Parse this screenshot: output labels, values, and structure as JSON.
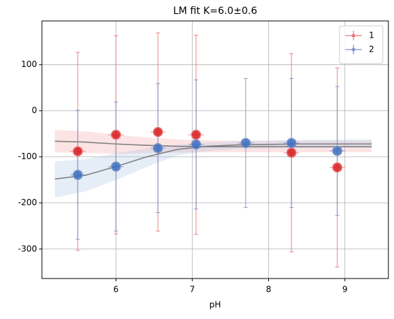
{
  "chart_data": {
    "type": "errorbar",
    "title": "LM fit K=6.0±0.6",
    "xlabel": "pH",
    "xlim": [
      5.03,
      9.57
    ],
    "ylim": [
      -364,
      195
    ],
    "xticks": [
      6,
      7,
      8,
      9
    ],
    "yticks": [
      100,
      0,
      -100,
      -200,
      -300
    ],
    "grid": true,
    "legend": "upper right",
    "series": [
      {
        "name": "1",
        "color": "#d7191c",
        "errcolor": "#e8777a",
        "x": [
          5.5,
          6.0,
          6.55,
          7.05,
          8.3,
          8.9
        ],
        "values": [
          -88,
          -52,
          -46,
          -52,
          -91,
          -123
        ],
        "yerr": [
          215,
          215,
          215,
          216,
          215,
          216
        ],
        "xerr": [
          0.1,
          0.1,
          0.1,
          0.1,
          0.1,
          0.1
        ]
      },
      {
        "name": "2",
        "color": "#3a6fc0",
        "errcolor": "#7f93c8",
        "x": [
          5.5,
          6.0,
          6.55,
          7.05,
          7.7,
          8.3,
          8.9
        ],
        "values": [
          -139,
          -121,
          -81,
          -73,
          -70,
          -70,
          -87
        ],
        "yerr": [
          140,
          140,
          140,
          140,
          140,
          140,
          140
        ],
        "xerr": [
          0.1,
          0.1,
          0.1,
          0.1,
          0.1,
          0.1,
          0.1
        ]
      }
    ],
    "fits": [
      {
        "color": "#808080",
        "band": "#f4a6a8",
        "x": [
          5.2,
          5.6,
          6.0,
          6.4,
          6.8,
          7.2,
          7.6,
          8.4,
          9.35
        ],
        "values": [
          -66,
          -68,
          -72,
          -75,
          -77,
          -78,
          -78,
          -78,
          -78
        ],
        "lower": [
          -90,
          -92,
          -93,
          -92,
          -91,
          -90,
          -90,
          -90,
          -90
        ],
        "upper": [
          -41,
          -45,
          -52,
          -58,
          -62,
          -64,
          -65,
          -65,
          -65
        ]
      },
      {
        "color": "#808080",
        "band": "#a9c4e0",
        "x": [
          5.2,
          5.6,
          6.0,
          6.4,
          6.8,
          7.2,
          7.6,
          8.4,
          9.35
        ],
        "values": [
          -148,
          -140,
          -121,
          -100,
          -84,
          -77,
          -74,
          -72,
          -72
        ],
        "lower": [
          -188,
          -175,
          -150,
          -122,
          -97,
          -87,
          -83,
          -81,
          -80
        ],
        "upper": [
          -110,
          -105,
          -92,
          -82,
          -74,
          -69,
          -66,
          -63,
          -62
        ]
      }
    ]
  }
}
